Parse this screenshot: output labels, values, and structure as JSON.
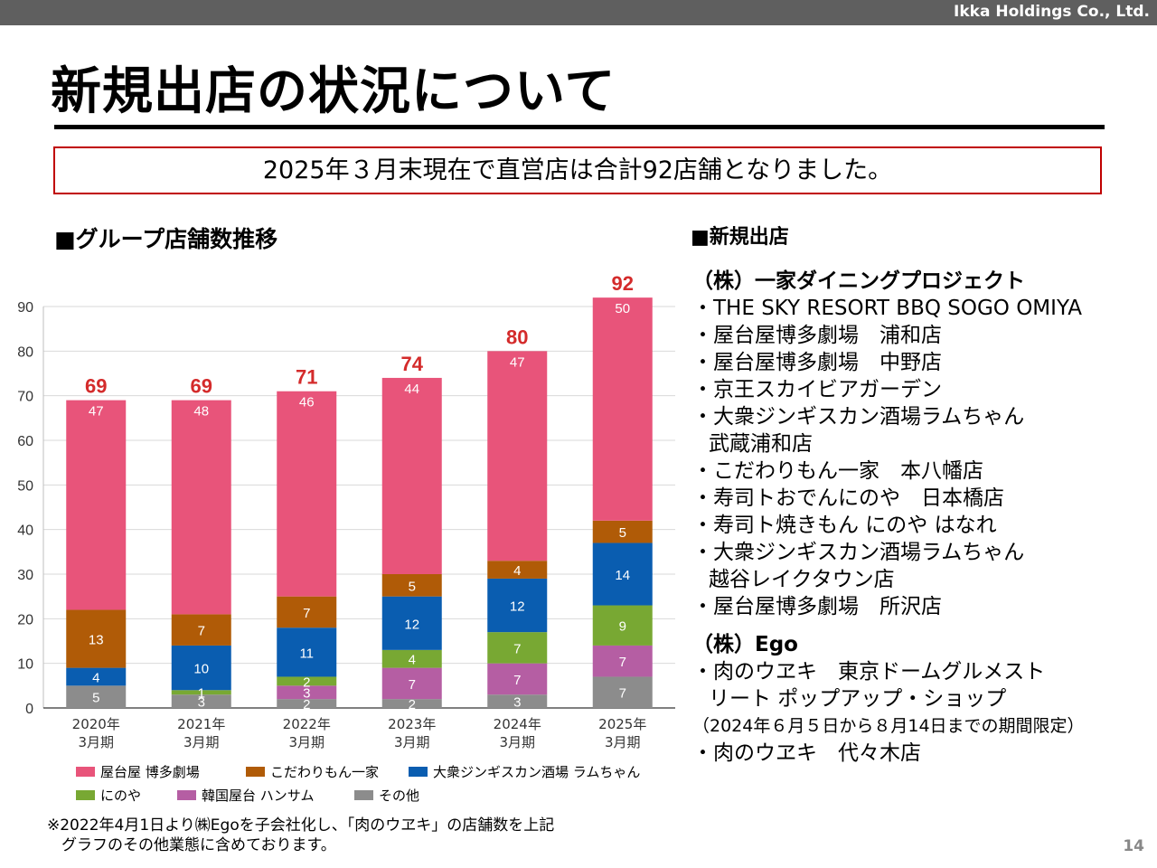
{
  "company": "Ikka Holdings Co., Ltd.",
  "title": "新規出店の状況について",
  "notice": "2025年３月末現在で直営店は合計92店舗となりました。",
  "left_section": "■グループ店舗数推移",
  "right_section": "■新規出店",
  "chart_data": {
    "type": "bar",
    "stacked": true,
    "categories": [
      "2020年\n3月期",
      "2021年\n3月期",
      "2022年\n3月期",
      "2023年\n3月期",
      "2024年\n3月期",
      "2025年\n3月期"
    ],
    "series": [
      {
        "name": "その他",
        "values": [
          5,
          3,
          2,
          2,
          3,
          7
        ],
        "color": "#8c8c8c"
      },
      {
        "name": "韓国屋台 ハンサム",
        "values": [
          0,
          0,
          3,
          7,
          7,
          7
        ],
        "color": "#b55ea3"
      },
      {
        "name": "にのや",
        "values": [
          0,
          1,
          2,
          4,
          7,
          9
        ],
        "color": "#78a833"
      },
      {
        "name": "大衆ジンギスカン酒場 ラムちゃん",
        "values": [
          4,
          10,
          11,
          12,
          12,
          14
        ],
        "color": "#0a5db0"
      },
      {
        "name": "こだわりもん一家",
        "values": [
          13,
          7,
          7,
          5,
          4,
          5
        ],
        "color": "#b05b07"
      },
      {
        "name": "屋台屋 博多劇場",
        "values": [
          47,
          48,
          46,
          44,
          47,
          50
        ],
        "color": "#e8547a"
      }
    ],
    "totals": [
      69,
      69,
      71,
      74,
      80,
      92
    ],
    "ylim": [
      0,
      90
    ],
    "yticks": [
      0,
      10,
      20,
      30,
      40,
      50,
      60,
      70,
      80,
      90
    ],
    "grid": true,
    "legend_position": "bottom",
    "total_label_color": "#d42b2b"
  },
  "new_stores": {
    "company1": "（株）一家ダイニングプロジェクト",
    "list1": [
      "・THE SKY RESORT BBQ SOGO OMIYA",
      "・屋台屋博多劇場　浦和店",
      "・屋台屋博多劇場　中野店",
      "・京王スカイビアガーデン",
      "・大衆ジンギスカン酒場ラムちゃん",
      "武蔵浦和店",
      "・こだわりもん一家　本八幡店",
      "・寿司トおでんにのや　日本橋店",
      "・寿司ト焼きもん にのや はなれ",
      "・大衆ジンギスカン酒場ラムちゃん",
      "越谷レイクタウン店",
      "・屋台屋博多劇場　所沢店"
    ],
    "company2": "（株）Ego",
    "list2": [
      "・肉のウヱキ　東京ドームグルメスト",
      "リート ポップアップ・ショップ",
      "（2024年６月５日から８月14日までの期間限定）",
      "・肉のウヱキ　代々木店"
    ]
  },
  "footnote": [
    "※2022年4月1日より㈱Egoを子会社化し、「肉のウヱキ」の店舗数を上記",
    "グラフのその他業態に含めております。"
  ],
  "page_number": "14"
}
